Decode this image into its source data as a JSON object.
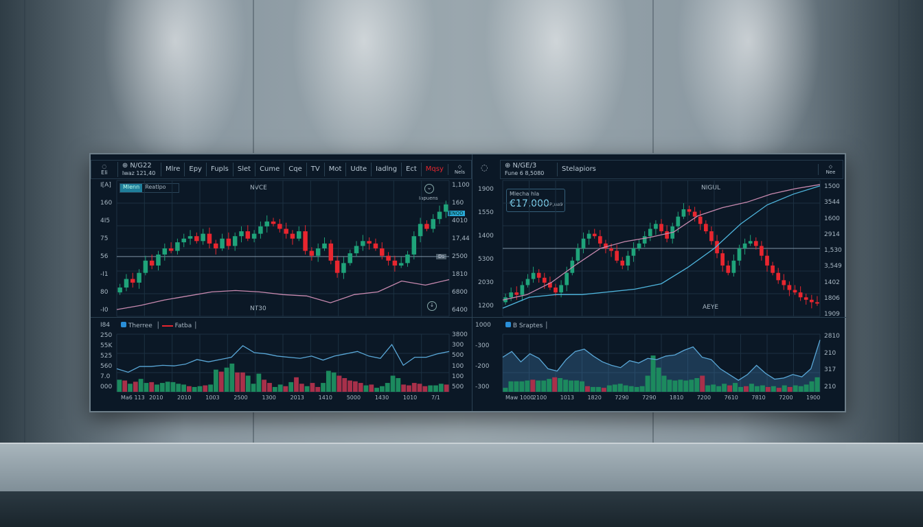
{
  "left": {
    "icon_left": "Eli",
    "ticker": "⊕ N/G22",
    "ticker_sub": "Iwaz 121,40",
    "menu": [
      "Mlre",
      "Epy",
      "Fupls",
      "Slet",
      "Cume",
      "Cqe",
      "TV",
      "Mot",
      "Udte",
      "Iadlng",
      "Ect",
      "Mqsy"
    ],
    "menu_active": "Mqsy",
    "icon_right": "Nels",
    "toggle": [
      "Mlenn",
      "Reatlpo"
    ],
    "chart_top_label": "NVCE",
    "chart_bottom_label": "NT30",
    "indicator_label": "Iapuens",
    "price_tag": "ENQD",
    "level_tag": "Ds",
    "yaxis_left": [
      "I[A]",
      "160",
      "4I5",
      "75",
      "56",
      "-I1",
      "80",
      "-I0"
    ],
    "yaxis_right": [
      "1,100",
      "160",
      "4010",
      "17,44",
      "2500",
      "1810",
      "6800",
      "6400"
    ],
    "sub_legend": [
      "Therree",
      "Fatba"
    ],
    "sub_yaxis_left": [
      "I84",
      "250",
      "55K",
      "525",
      "560",
      "7.0",
      "000"
    ],
    "sub_yaxis_right": [
      "3800",
      "300",
      "500",
      "100",
      "100",
      "500"
    ],
    "sub_xaxis": [
      "Ma6 113",
      "2010",
      "2010",
      "1003",
      "2500",
      "1300",
      "2013",
      "1410",
      "5000",
      "1430",
      "1010",
      "7/1"
    ]
  },
  "right": {
    "ticker": "⊕ N/GE/3",
    "ticker_sub": "Fune 6 8,5080",
    "tab": "Stelapiors",
    "icon_right": "Nee",
    "badge_label": "Mlecha hla",
    "badge_value": "€17,000",
    "badge_unit": "P,ua9",
    "chart_top_label": "NIGUL",
    "chart_bottom_label": "AEYE",
    "yaxis_left": [
      "1900",
      "1550",
      "1400",
      "5300",
      "2030",
      "1200"
    ],
    "yaxis_right": [
      "1500",
      "3544",
      "1600",
      "2914",
      "1,530",
      "3,549",
      "1402",
      "1806",
      "1909"
    ],
    "sub_legend": "B Sraptes",
    "sub_yaxis_left": [
      "1000",
      "-300",
      "-200",
      "-300"
    ],
    "sub_yaxis_right": [
      "2810",
      "210",
      "317",
      "210"
    ],
    "sub_xaxis": [
      "Maw 1000",
      "2100",
      "1013",
      "1820",
      "7290",
      "7290",
      "1810",
      "7200",
      "7610",
      "7810",
      "7200",
      "1900"
    ]
  },
  "colors": {
    "up": "#1fa37a",
    "down": "#e8262f",
    "pink": "#c98ab0",
    "blue": "#4fb6de",
    "grid": "#1c3142",
    "accent": "#2aa8d8"
  },
  "chart_data": [
    {
      "type": "candlestick",
      "panel": "left-main",
      "closes": [
        18,
        25,
        22,
        30,
        40,
        36,
        45,
        50,
        48,
        55,
        58,
        60,
        56,
        62,
        54,
        50,
        58,
        52,
        60,
        64,
        58,
        62,
        68,
        72,
        70,
        66,
        62,
        58,
        64,
        48,
        44,
        50,
        54,
        40,
        30,
        38,
        46,
        52,
        56,
        54,
        50,
        44,
        40,
        36,
        38,
        45,
        60,
        70,
        66,
        74,
        80,
        86
      ],
      "line_pink": [
        5,
        8,
        12,
        15,
        18,
        19,
        18,
        16,
        15,
        10,
        16,
        18,
        26,
        23,
        27
      ],
      "level": 44
    },
    {
      "type": "bar",
      "panel": "left-sub",
      "volumes": [
        30,
        -28,
        20,
        -25,
        32,
        22,
        -24,
        18,
        22,
        25,
        24,
        20,
        18,
        -14,
        12,
        14,
        -16,
        18,
        55,
        -50,
        60,
        70,
        -48,
        -48,
        40,
        20,
        45,
        -30,
        -22,
        12,
        18,
        -14,
        24,
        -36,
        -20,
        14,
        -22,
        -12,
        22,
        52,
        48,
        -40,
        -34,
        -28,
        -26,
        -22,
        16,
        -18,
        10,
        14,
        22,
        40,
        34,
        -18,
        -16,
        -22,
        -20,
        -14,
        16,
        16,
        20,
        -18
      ],
      "line": [
        40,
        34,
        44,
        44,
        46,
        45,
        48,
        56,
        52,
        56,
        60,
        80,
        68,
        66,
        62,
        60,
        58,
        62,
        55,
        62,
        66,
        70,
        62,
        58,
        82,
        46,
        60,
        60,
        66,
        70
      ]
    },
    {
      "type": "candlestick",
      "panel": "right-main",
      "closes": [
        10,
        14,
        12,
        20,
        25,
        30,
        26,
        22,
        18,
        14,
        20,
        30,
        40,
        50,
        58,
        62,
        60,
        54,
        50,
        48,
        40,
        36,
        44,
        50,
        54,
        60,
        66,
        70,
        64,
        58,
        68,
        76,
        82,
        80,
        76,
        70,
        64,
        56,
        46,
        36,
        30,
        40,
        50,
        54,
        56,
        52,
        44,
        36,
        30,
        24,
        20,
        16,
        14,
        10,
        8,
        6,
        5
      ],
      "line_pink": [
        12,
        16,
        25,
        38,
        50,
        55,
        58,
        62,
        74,
        80,
        84,
        90,
        94,
        97
      ],
      "line_blue": [
        6,
        14,
        16,
        16,
        18,
        20,
        24,
        36,
        50,
        68,
        82,
        90,
        96
      ],
      "level": 50
    },
    {
      "type": "area",
      "panel": "right-sub",
      "volumes": [
        10,
        26,
        26,
        26,
        28,
        -30,
        28,
        28,
        32,
        -36,
        34,
        30,
        28,
        28,
        26,
        -14,
        12,
        12,
        -10,
        16,
        18,
        20,
        16,
        14,
        12,
        14,
        40,
        90,
        60,
        40,
        30,
        28,
        30,
        28,
        30,
        34,
        -40,
        16,
        18,
        14,
        20,
        -16,
        22,
        12,
        -14,
        20,
        14,
        16,
        -12,
        14,
        -10,
        16,
        -12,
        16,
        14,
        18,
        26,
        36
      ],
      "line": [
        60,
        70,
        52,
        66,
        58,
        40,
        36,
        56,
        70,
        74,
        62,
        52,
        46,
        42,
        54,
        50,
        58,
        56,
        62,
        64,
        72,
        78,
        60,
        56,
        40,
        30,
        20,
        30,
        46,
        32,
        22,
        24,
        30,
        26,
        40,
        90
      ]
    }
  ]
}
